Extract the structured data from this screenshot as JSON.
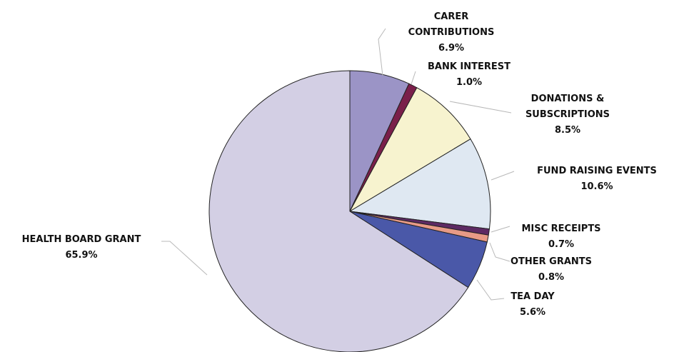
{
  "chart_data": {
    "type": "pie",
    "title": "",
    "start": "12 o'clock",
    "direction": "clockwise",
    "slices": [
      {
        "label": "CARER CONTRIBUTIONS",
        "value": 6.9,
        "value_label": "6.9%",
        "color": "#9b94c6"
      },
      {
        "label": "BANK INTEREST",
        "value": 1.0,
        "value_label": "1.0%",
        "color": "#7a1f4a"
      },
      {
        "label": "DONATIONS & SUBSCRIPTIONS",
        "value": 8.5,
        "value_label": "8.5%",
        "color": "#f7f3cf"
      },
      {
        "label": "FUND RAISING EVENTS",
        "value": 10.6,
        "value_label": "10.6%",
        "color": "#dfe8f2"
      },
      {
        "label": "MISC RECEIPTS",
        "value": 0.7,
        "value_label": "0.7%",
        "color": "#5d2a63"
      },
      {
        "label": "OTHER GRANTS",
        "value": 0.8,
        "value_label": "0.8%",
        "color": "#e79a86"
      },
      {
        "label": "TEA DAY",
        "value": 5.6,
        "value_label": "5.6%",
        "color": "#4a58a8"
      },
      {
        "label": "HEALTH BOARD GRANT",
        "value": 65.9,
        "value_label": "65.9%",
        "color": "#d3cfe4"
      }
    ],
    "label_text": [
      [
        "CARER",
        "CONTRIBUTIONS",
        "6.9%"
      ],
      [
        "BANK INTEREST",
        "1.0%"
      ],
      [
        "DONATIONS &",
        "SUBSCRIPTIONS",
        "8.5%"
      ],
      [
        "FUND RAISING EVENTS",
        "10.6%"
      ],
      [
        "MISC RECEIPTS",
        "0.7%"
      ],
      [
        "OTHER GRANTS",
        "0.8%"
      ],
      [
        "TEA DAY",
        "5.6%"
      ],
      [
        "HEALTH BOARD GRANT",
        "65.9%"
      ]
    ]
  }
}
